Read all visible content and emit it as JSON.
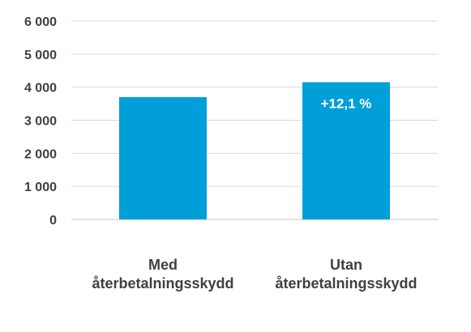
{
  "chart_data": {
    "type": "bar",
    "title": "",
    "xlabel": "",
    "ylabel": "",
    "categories": [
      [
        "Med",
        "återbetalningsskydd"
      ],
      [
        "Utan",
        "återbetalningsskydd"
      ]
    ],
    "values": [
      3700,
      4150
    ],
    "data_labels": [
      "",
      "+12,1 %"
    ],
    "ylim": [
      0,
      6000
    ],
    "yticks": [
      0,
      1000,
      2000,
      3000,
      4000,
      5000,
      6000
    ],
    "ytick_labels": [
      "0",
      "1 000",
      "2 000",
      "3 000",
      "4 000",
      "5 000",
      "6 000"
    ],
    "grid": true,
    "legend": "none",
    "colors": {
      "bar": "#009fd9",
      "grid": "#d9d9d9",
      "text": "#404040",
      "data_label": "#ffffff"
    }
  }
}
